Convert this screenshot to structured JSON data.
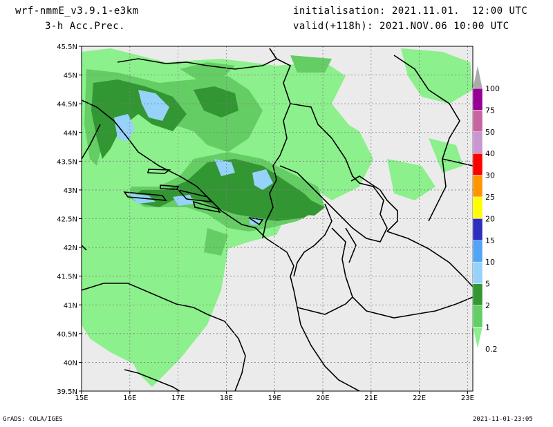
{
  "header": {
    "model": "wrf-nmmE_v3.9.1-e3km",
    "variable": "3-h Acc.Prec.",
    "initialisation": "initialisation: 2021.11.01.  12:00 UTC",
    "valid": "valid(+118h): 2021.NOV.06 10:00 UTC"
  },
  "footer": {
    "left": "GrADS: COLA/IGES",
    "right": "2021-11-01-23:05"
  },
  "map": {
    "lat_labels": [
      "45.5N",
      "45N",
      "44.5N",
      "44N",
      "43.5N",
      "43N",
      "42.5N",
      "42N",
      "41.5N",
      "41N",
      "40.5N",
      "40N",
      "39.5N"
    ],
    "lon_labels": [
      "15E",
      "16E",
      "17E",
      "18E",
      "19E",
      "20E",
      "21E",
      "22E",
      "23E"
    ],
    "background_color": "#ebebeb"
  },
  "legend": {
    "labels": [
      "0.2",
      "1",
      "2",
      "5",
      "10",
      "15",
      "20",
      "25",
      "30",
      "40",
      "50",
      "75",
      "100"
    ],
    "colors": [
      "#8cf08c",
      "#64cd64",
      "#329632",
      "#96d2fa",
      "#50a5f5",
      "#2d2dbe",
      "#ffff00",
      "#ff9600",
      "#ff0000",
      "#c896d2",
      "#c864a0",
      "#960096",
      "#aaaaaa"
    ]
  }
}
